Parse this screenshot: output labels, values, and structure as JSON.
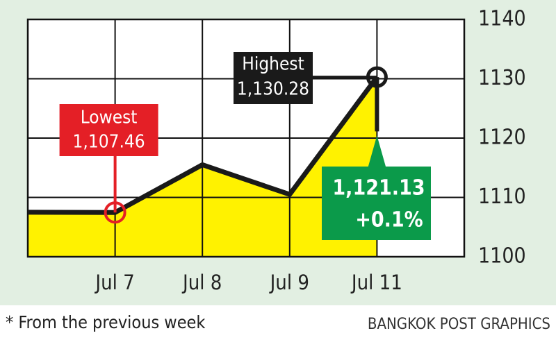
{
  "chart_data": {
    "type": "line",
    "categories": [
      null,
      "Jul 7",
      "Jul 8",
      "Jul 9",
      "Jul 11"
    ],
    "values": [
      1107.5,
      1107.46,
      1115.5,
      1110.5,
      1130.28
    ],
    "color": "#1a1a1a",
    "area_color": "#fff200",
    "ylim": [
      1100,
      1140
    ],
    "yticks": [
      1100,
      1110,
      1120,
      1130,
      1140
    ],
    "grid": true,
    "annotations": {
      "lowest": {
        "label": "Lowest",
        "value": 1107.46,
        "value_label": "1,107.46",
        "color": "#e41f26"
      },
      "highest": {
        "label": "Highest",
        "value": 1130.28,
        "value_label": "1,130.28",
        "color": "#1a1a1a"
      },
      "close": {
        "value": 1121.13,
        "value_label": "1,121.13",
        "change": "+0.1%",
        "color": "#0b9a4a"
      }
    },
    "footnote": "* From the previous week",
    "source": "BANGKOK POST GRAPHICS"
  }
}
